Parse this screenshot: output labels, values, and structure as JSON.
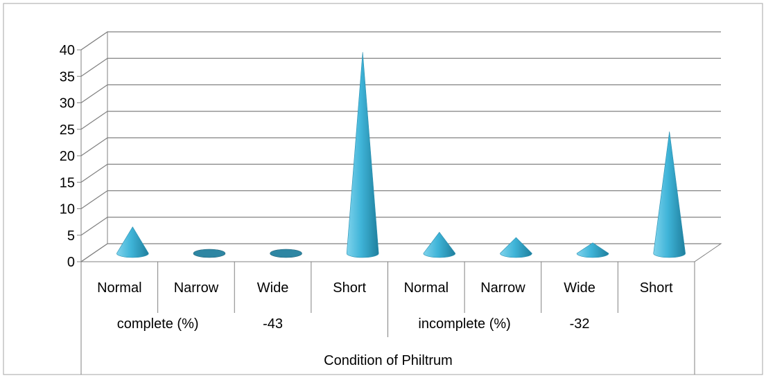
{
  "chart_data": {
    "type": "3d-cone-column",
    "categories": [
      "Normal",
      "Narrow",
      "Wide",
      "Short",
      "Normal",
      "Narrow",
      "Wide",
      "Short"
    ],
    "values": [
      5,
      0,
      0,
      38,
      4,
      3,
      2,
      23
    ],
    "groups": [
      {
        "label": "complete (%)",
        "sublabel": "-43"
      },
      {
        "label": "incomplete (%)",
        "sublabel": "-32"
      }
    ],
    "xlabel": "Condition of Philtrum",
    "ylabel": "",
    "ylim": [
      0,
      40
    ],
    "yticks": [
      0,
      5,
      10,
      15,
      20,
      25,
      30,
      35,
      40
    ],
    "grid": true,
    "legend": "none",
    "colors": {
      "cone_light": "#7fd3ec",
      "cone_mid": "#3fb4d8",
      "cone_dark": "#1f7f9d",
      "flat_disc": "#2e86a3",
      "axis": "#808080",
      "grid": "#808080",
      "frame": "#a6a6a6"
    }
  }
}
